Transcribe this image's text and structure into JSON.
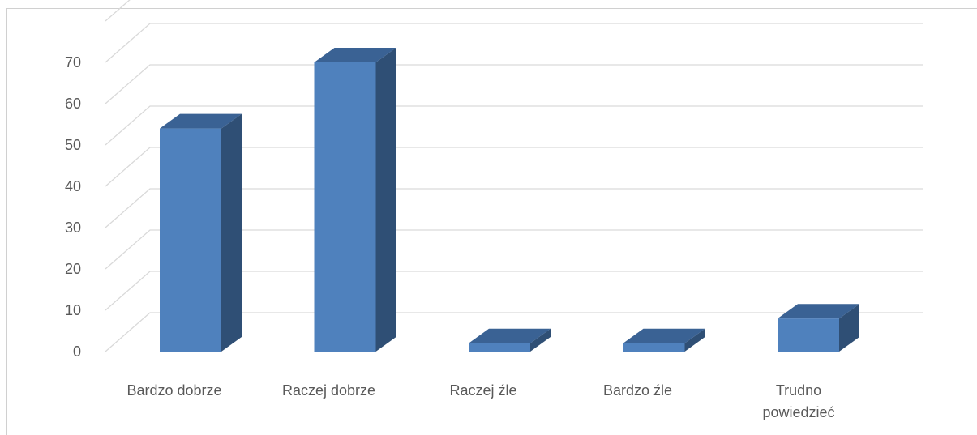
{
  "chart_data": {
    "type": "bar",
    "title": "",
    "xlabel": "",
    "ylabel": "",
    "categories": [
      "Bardzo dobrze",
      "Raczej dobrze",
      "Raczej źle",
      "Bardzo źle",
      "Trudno powiedzieć"
    ],
    "category_lines": [
      [
        "Bardzo dobrze"
      ],
      [
        "Raczej dobrze"
      ],
      [
        "Raczej źle"
      ],
      [
        "Bardzo źle"
      ],
      [
        "Trudno",
        "powiedzieć"
      ]
    ],
    "values": [
      54,
      70,
      2,
      2,
      8
    ],
    "ylim": [
      0,
      70
    ],
    "yticks": [
      0,
      10,
      20,
      30,
      40,
      50,
      60,
      70
    ],
    "grid": true,
    "style_3d": true,
    "colors": {
      "front": "#4f81bd",
      "top": "#3a6294",
      "side": "#2f4f75",
      "grid": "#d9d9d9",
      "text": "#595959"
    }
  }
}
